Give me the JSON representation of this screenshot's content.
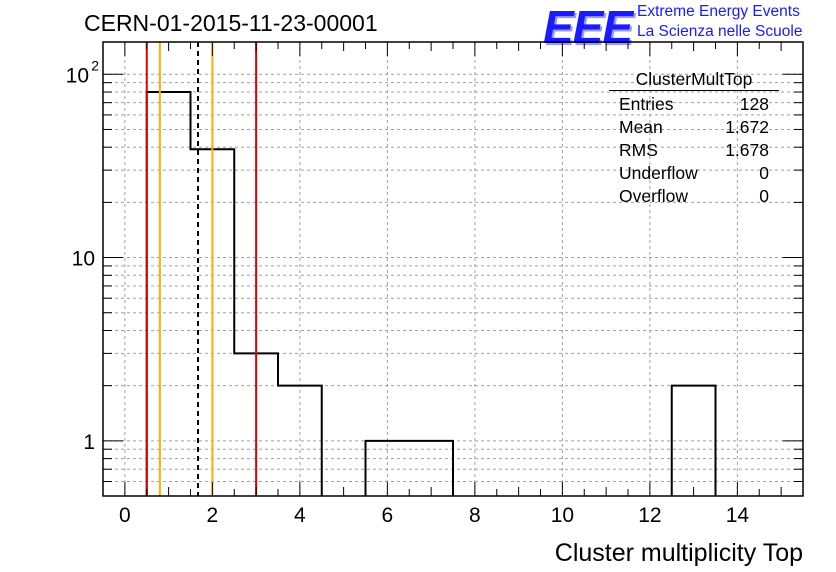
{
  "header": {
    "run_title": "CERN-01-2015-11-23-00001",
    "logo_mark": "EEE",
    "logo_line1": "Extreme Energy Events",
    "logo_line2": "La Scienza nelle Scuole"
  },
  "stats_box": {
    "title": "ClusterMultTop",
    "rows": [
      {
        "label": "Entries",
        "value": "128"
      },
      {
        "label": "Mean",
        "value": "1.672"
      },
      {
        "label": "RMS",
        "value": "1.678"
      },
      {
        "label": "Underflow",
        "value": "0"
      },
      {
        "label": "Overflow",
        "value": "0"
      }
    ]
  },
  "chart_data": {
    "type": "histogram",
    "title": "CERN-01-2015-11-23-00001",
    "xlabel": "Cluster multiplicity Top",
    "ylabel": "",
    "xlim": [
      -0.5,
      15.5
    ],
    "ylim": [
      0.5,
      150
    ],
    "yscale": "log",
    "grid": true,
    "x_ticks": [
      0,
      2,
      4,
      6,
      8,
      10,
      12,
      14
    ],
    "y_tick_labels": [
      {
        "value": 1,
        "label": "1"
      },
      {
        "value": 10,
        "label": "10"
      },
      {
        "value": 100,
        "label": "10",
        "exp": "2"
      }
    ],
    "bins": [
      {
        "low": 0.5,
        "high": 1.5,
        "count": 80
      },
      {
        "low": 1.5,
        "high": 2.5,
        "count": 39
      },
      {
        "low": 2.5,
        "high": 3.5,
        "count": 3
      },
      {
        "low": 3.5,
        "high": 4.5,
        "count": 2
      },
      {
        "low": 5.5,
        "high": 6.5,
        "count": 1
      },
      {
        "low": 6.5,
        "high": 7.5,
        "count": 1
      },
      {
        "low": 12.5,
        "high": 13.5,
        "count": 2
      }
    ],
    "reference_lines": [
      {
        "x": 0.5,
        "color": "#e00000",
        "style": "solid"
      },
      {
        "x": 0.8,
        "color": "#ffb000",
        "style": "solid"
      },
      {
        "x": 1.672,
        "color": "#000000",
        "style": "dashed"
      },
      {
        "x": 2.0,
        "color": "#ffb000",
        "style": "solid"
      },
      {
        "x": 3.0,
        "color": "#e00000",
        "style": "solid"
      }
    ]
  }
}
